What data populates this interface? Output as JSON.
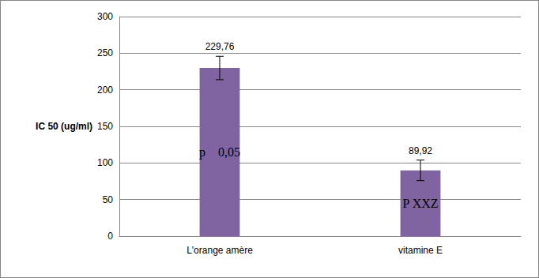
{
  "chart_data": {
    "type": "bar",
    "ylabel": "IC 50 (ug/ml)",
    "categories": [
      "L'orange amère",
      "vitamine E"
    ],
    "values": [
      229.76,
      89.92
    ],
    "value_labels": [
      "229,76",
      "89,92"
    ],
    "errors": [
      16,
      14
    ],
    "annotations": [
      "p    0,05",
      "P XXZ"
    ],
    "color": "#8064a2",
    "ylim": [
      0,
      300
    ],
    "yticks": [
      0,
      50,
      100,
      150,
      200,
      250,
      300
    ],
    "grid": true,
    "data_labels": true
  }
}
